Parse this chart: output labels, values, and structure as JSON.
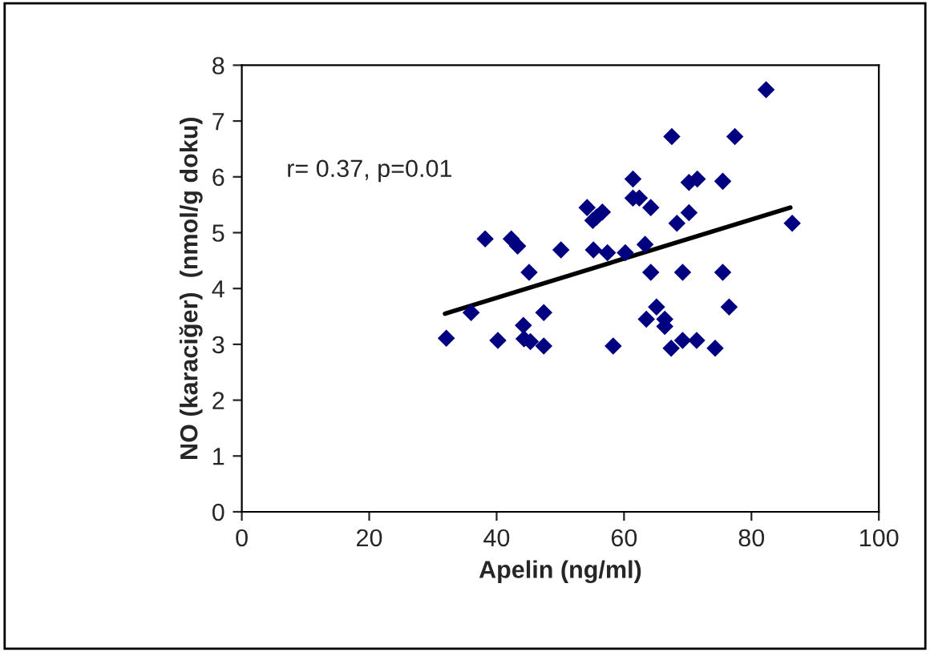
{
  "chart_data": {
    "type": "scatter",
    "xlabel": "Apelin (ng/ml)",
    "ylabel": "NO (karaciğer)  (nmol/g doku)",
    "xlim": [
      0,
      100
    ],
    "xticks": [
      0,
      20,
      40,
      60,
      80,
      100
    ],
    "ylim": [
      0,
      8
    ],
    "yticks": [
      0,
      1,
      2,
      3,
      4,
      5,
      6,
      7,
      8
    ],
    "grid": false,
    "legend": false,
    "annotations": [
      "r= 0.37, p=0.01"
    ],
    "series": [
      {
        "marker": "diamond",
        "color": "#000080",
        "x": [
          32.1,
          36.0,
          38.2,
          40.2,
          42.3,
          43.3,
          45.1,
          44.2,
          44.3,
          45.3,
          47.4,
          47.4,
          50.1,
          54.2,
          55.1,
          55.7,
          56.6,
          55.2,
          57.4,
          58.3,
          60.2,
          61.4,
          61.4,
          62.4,
          64.2,
          63.3,
          64.2,
          65.1,
          63.5,
          66.4,
          66.4,
          67.5,
          68.3,
          67.4,
          69.2,
          69.2,
          70.2,
          71.5,
          70.2,
          71.4,
          74.3,
          75.5,
          75.5,
          76.5,
          77.4,
          82.3,
          86.4
        ],
        "values": [
          3.11,
          3.57,
          4.89,
          3.07,
          4.89,
          4.76,
          4.29,
          3.34,
          3.1,
          3.05,
          3.57,
          2.97,
          4.69,
          5.45,
          5.22,
          5.28,
          5.37,
          4.69,
          4.64,
          2.97,
          4.64,
          5.96,
          5.62,
          5.62,
          5.45,
          4.79,
          4.29,
          3.67,
          3.45,
          3.45,
          3.32,
          6.72,
          5.17,
          2.93,
          3.07,
          4.29,
          5.9,
          5.96,
          5.36,
          3.07,
          2.93,
          5.92,
          4.29,
          3.67,
          6.72,
          7.56,
          5.17
        ]
      },
      {
        "type": "line",
        "color": "#000000",
        "x": [
          31.9,
          86.1
        ],
        "values": [
          3.55,
          5.45
        ]
      }
    ]
  }
}
